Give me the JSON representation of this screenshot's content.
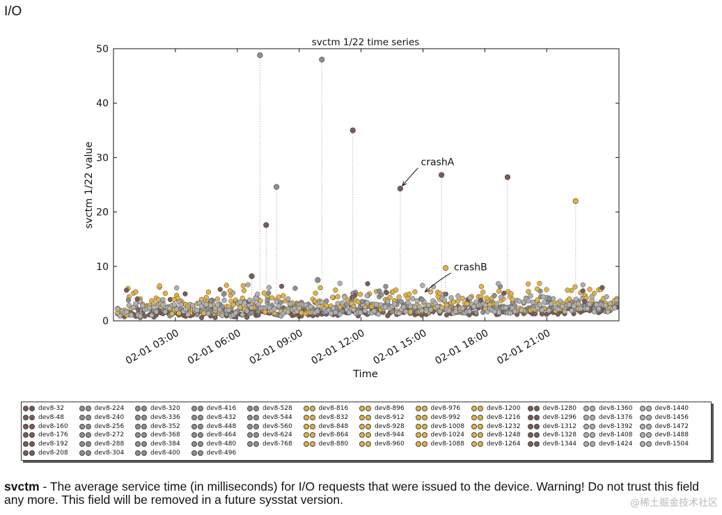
{
  "page": {
    "section_title": "I/O",
    "description_term": "svctm",
    "description_text": " - The average service time (in milliseconds) for I/O requests that were issued to the device. Warning! Do not trust this field any more. This field will be removed in a future sysstat version.",
    "watermark": "@稀土掘金技术社区"
  },
  "chart_data": {
    "type": "scatter",
    "title": "svctm 1/22 time series",
    "xlabel": "Time",
    "ylabel": "svctm 1/22 value",
    "ylim": [
      0,
      50
    ],
    "yticks": [
      0,
      10,
      20,
      30,
      40,
      50
    ],
    "xlim_hours": [
      0,
      24.5
    ],
    "xticks": [
      {
        "label": "02-01 03:00",
        "hour": 3
      },
      {
        "label": "02-01 06:00",
        "hour": 6
      },
      {
        "label": "02-01 09:00",
        "hour": 9
      },
      {
        "label": "02-01 12:00",
        "hour": 12
      },
      {
        "label": "02-01 15:00",
        "hour": 15
      },
      {
        "label": "02-01 18:00",
        "hour": 18
      },
      {
        "label": "02-01 21:00",
        "hour": 21
      }
    ],
    "colors": {
      "brown": "#7a5c52",
      "gray": "#8f8f8f",
      "gold": "#e3b341",
      "silver": "#b0b0b0",
      "line": "#b5b5b5"
    },
    "spikes": [
      {
        "hour": 7.1,
        "value": 48.8,
        "series": "gray"
      },
      {
        "hour": 7.4,
        "value": 17.6,
        "series": "brown"
      },
      {
        "hour": 7.9,
        "value": 24.6,
        "series": "gray"
      },
      {
        "hour": 10.1,
        "value": 48.0,
        "series": "gray"
      },
      {
        "hour": 11.6,
        "value": 35.0,
        "series": "brown"
      },
      {
        "hour": 13.9,
        "value": 24.3,
        "series": "brown"
      },
      {
        "hour": 15.9,
        "value": 26.8,
        "series": "brown"
      },
      {
        "hour": 19.1,
        "value": 26.4,
        "series": "brown"
      },
      {
        "hour": 22.4,
        "value": 22.0,
        "series": "gold"
      },
      {
        "hour": 16.1,
        "value": 9.7,
        "series": "gold"
      },
      {
        "hour": 6.7,
        "value": 8.2,
        "series": "brown"
      },
      {
        "hour": 9.9,
        "value": 7.5,
        "series": "gray"
      }
    ],
    "baseline": {
      "hours": [
        0.2,
        24.4
      ],
      "series": [
        {
          "name": "brown",
          "min": 0.4,
          "max": 2.4
        },
        {
          "name": "gray",
          "min": 0.8,
          "max": 3.6
        },
        {
          "name": "gold",
          "min": 1.0,
          "max": 5.5
        },
        {
          "name": "silver",
          "min": 0.6,
          "max": 4.2
        }
      ]
    },
    "annotations": [
      {
        "text": "crashA",
        "target_hour": 13.9,
        "target_value": 24.3,
        "text_hour": 14.9,
        "text_value": 28.6
      },
      {
        "text": "crashB",
        "target_hour": 15.0,
        "target_value": 4.8,
        "text_hour": 16.5,
        "text_value": 9.3
      }
    ],
    "legend": {
      "columns": [
        {
          "color": "brown",
          "items": [
            "dev8-32",
            "dev8-48",
            "dev8-160",
            "dev8-176",
            "dev8-192",
            "dev8-208"
          ]
        },
        {
          "color": "gray",
          "items": [
            "dev8-224",
            "dev8-240",
            "dev8-256",
            "dev8-272",
            "dev8-288",
            "dev8-304"
          ]
        },
        {
          "color": "gray",
          "items": [
            "dev8-320",
            "dev8-336",
            "dev8-352",
            "dev8-368",
            "dev8-384",
            "dev8-400"
          ]
        },
        {
          "color": "gray",
          "items": [
            "dev8-416",
            "dev8-432",
            "dev8-448",
            "dev8-464",
            "dev8-480",
            "dev8-496"
          ]
        },
        {
          "color": "gray",
          "items": [
            "dev8-528",
            "dev8-544",
            "dev8-560",
            "dev8-624",
            "dev8-768"
          ]
        },
        {
          "color": "gold",
          "items": [
            "dev8-816",
            "dev8-832",
            "dev8-848",
            "dev8-864",
            "dev8-880"
          ]
        },
        {
          "color": "gold",
          "items": [
            "dev8-896",
            "dev8-912",
            "dev8-928",
            "dev8-944",
            "dev8-960"
          ]
        },
        {
          "color": "gold",
          "items": [
            "dev8-976",
            "dev8-992",
            "dev8-1008",
            "dev8-1024",
            "dev8-1088"
          ]
        },
        {
          "color": "gold",
          "items": [
            "dev8-1200",
            "dev8-1216",
            "dev8-1232",
            "dev8-1248",
            "dev8-1264"
          ]
        },
        {
          "color": "brown",
          "items": [
            "dev8-1280",
            "dev8-1296",
            "dev8-1312",
            "dev8-1328",
            "dev8-1344"
          ]
        },
        {
          "color": "silver",
          "items": [
            "dev8-1360",
            "dev8-1376",
            "dev8-1392",
            "dev8-1408",
            "dev8-1424"
          ]
        },
        {
          "color": "silver",
          "items": [
            "dev8-1440",
            "dev8-1456",
            "dev8-1472",
            "dev8-1488",
            "dev8-1504"
          ]
        }
      ]
    }
  }
}
